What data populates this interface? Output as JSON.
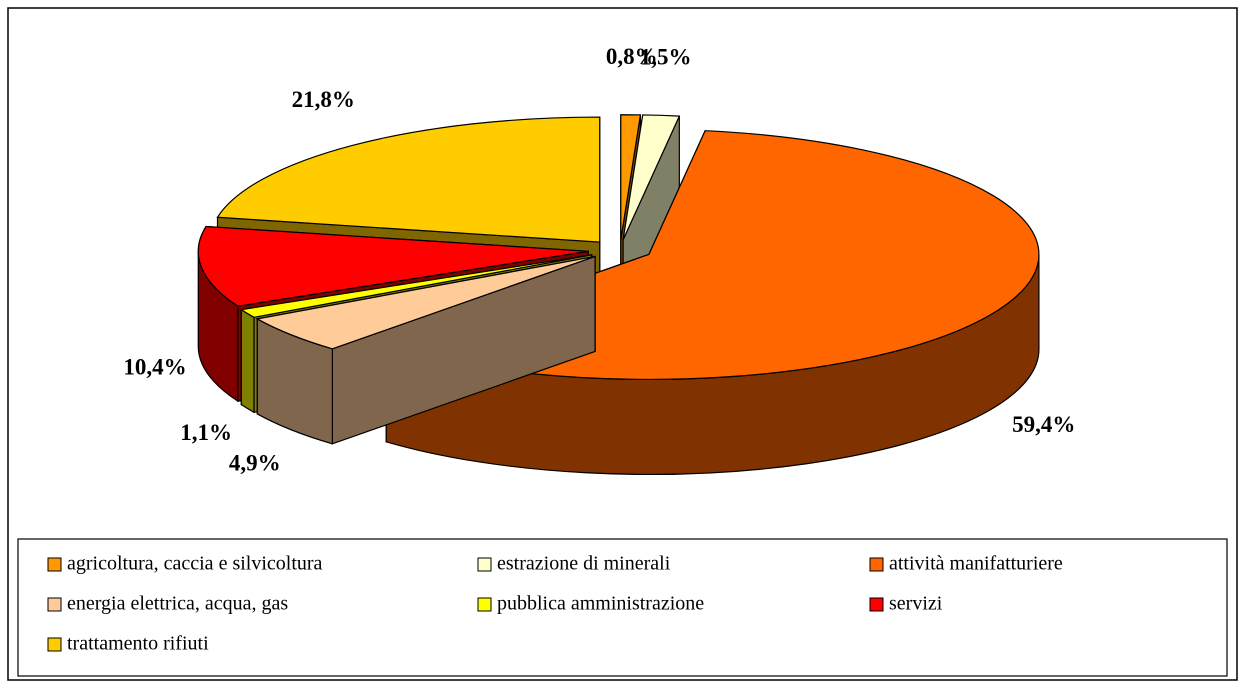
{
  "chart_data": {
    "type": "pie",
    "categories": [
      "agricoltura, caccia e silvicoltura",
      "estrazione di minerali",
      "attività manifatturiere",
      "energia elettrica, acqua, gas",
      "pubblica amministrazione",
      "servizi",
      "trattamento rifiuti"
    ],
    "values": [
      0.8,
      1.5,
      59.4,
      4.9,
      1.1,
      10.4,
      21.8
    ],
    "value_labels": [
      "0,8%",
      "1,5%",
      "59,4%",
      "4,9%",
      "1,1%",
      "10,4%",
      "21,8%"
    ],
    "colors": [
      "#FF9900",
      "#FFFFCC",
      "#FF6600",
      "#FFCC99",
      "#FFFF00",
      "#FF0000",
      "#FFCC00"
    ],
    "legend": "bottom"
  }
}
